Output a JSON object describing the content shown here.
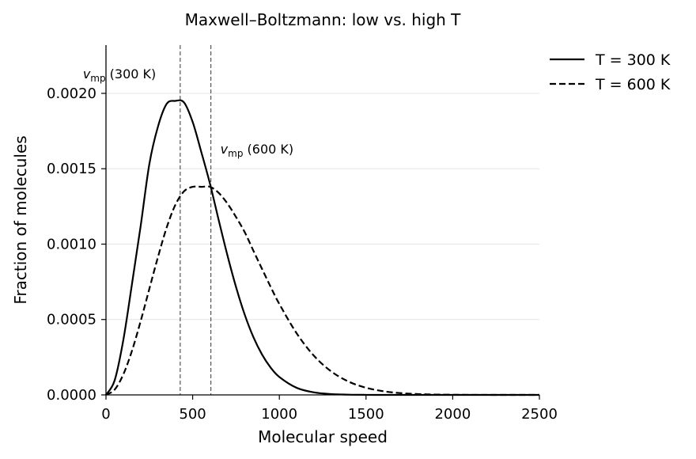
{
  "chart_data": {
    "type": "line",
    "title": "Maxwell–Boltzmann: low vs. high T",
    "xlabel": "Molecular speed",
    "ylabel": "Fraction of molecules",
    "xlim": [
      0,
      2500
    ],
    "ylim": [
      0,
      0.00232
    ],
    "xticks": [
      0,
      500,
      1000,
      1500,
      2000,
      2500
    ],
    "xtick_labels": [
      "0",
      "500",
      "1000",
      "1500",
      "2000",
      "2500"
    ],
    "yticks": [
      0,
      0.0005,
      0.001,
      0.0015,
      0.002
    ],
    "ytick_labels": [
      "0.0000",
      "0.0005",
      "0.0010",
      "0.0015",
      "0.0020"
    ],
    "grid": "horizontal",
    "legend_position": "outside-top-right",
    "x": [
      0,
      50,
      100,
      150,
      200,
      250,
      300,
      350,
      400,
      450,
      500,
      550,
      600,
      650,
      700,
      750,
      800,
      850,
      900,
      950,
      1000,
      1100,
      1200,
      1300,
      1400,
      1500,
      1600,
      1700,
      1800,
      1900,
      2000,
      2100,
      2200,
      2300,
      2400,
      2500
    ],
    "series": [
      {
        "name": "T = 300 K",
        "style": "solid",
        "color": "#000000",
        "values": [
          0,
          9.65e-05,
          0.000364,
          0.000736,
          0.00112,
          0.00153,
          0.00178,
          0.00193,
          0.00195,
          0.00194,
          0.00181,
          0.00161,
          0.0014,
          0.00116,
          0.000928,
          0.000716,
          0.000533,
          0.000384,
          0.000268,
          0.000181,
          0.000119,
          4.69e-05,
          1.68e-05,
          5.5e-06,
          1.6e-06,
          4e-07,
          1e-07,
          0,
          0,
          0,
          0,
          0,
          0,
          0,
          0,
          0
        ]
      },
      {
        "name": "T = 600 K",
        "style": "dashed",
        "color": "#000000",
        "values": [
          0,
          3.49e-05,
          0.000136,
          0.000293,
          0.000489,
          0.000703,
          0.000915,
          0.00111,
          0.00126,
          0.00135,
          0.00138,
          0.00138,
          0.00138,
          0.00134,
          0.00127,
          0.00118,
          0.00108,
          0.000957,
          0.000836,
          0.000716,
          0.000603,
          0.000408,
          0.000259,
          0.000155,
          8.79e-05,
          4.73e-05,
          2.42e-05,
          1.18e-05,
          5.5e-06,
          2.4e-06,
          1e-06,
          4e-07,
          2e-07,
          1e-07,
          0,
          0
        ]
      }
    ],
    "vlines": [
      {
        "x": 428,
        "color": "#555555",
        "style": "dashed"
      },
      {
        "x": 605,
        "color": "#555555",
        "style": "dashed"
      }
    ],
    "annotations": [
      {
        "var": "v",
        "sub": "mp",
        "text": " (300 K)",
        "x": 428,
        "y": 0.0021
      },
      {
        "var": "v",
        "sub": "mp",
        "text": " (600 K)",
        "x": 660,
        "y": 0.0016
      }
    ]
  }
}
